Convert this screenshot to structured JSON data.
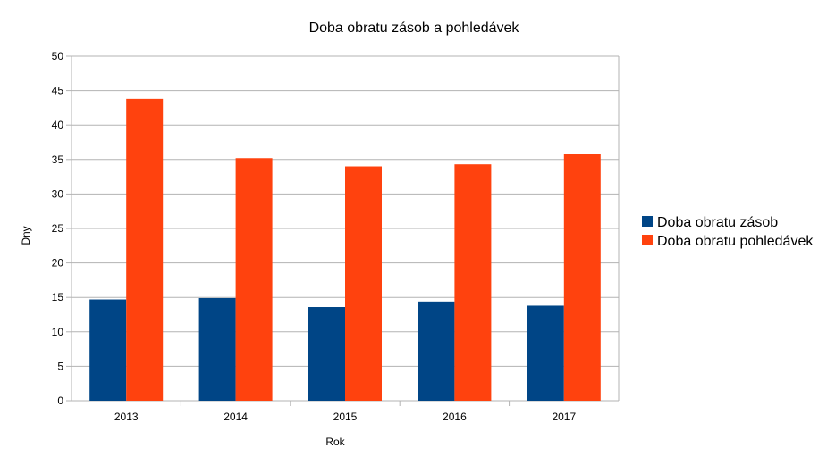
{
  "chart_data": {
    "type": "bar",
    "title": "Doba obratu zásob a pohledávek",
    "xlabel": "Rok",
    "ylabel": "Dny",
    "categories": [
      "2013",
      "2014",
      "2015",
      "2016",
      "2017"
    ],
    "series": [
      {
        "name": "Doba obratu zásob",
        "color": "#004586",
        "values": [
          14.7,
          14.9,
          13.6,
          14.4,
          13.8
        ]
      },
      {
        "name": "Doba obratu pohledávek",
        "color": "#ff420e",
        "values": [
          43.8,
          35.2,
          34.0,
          34.3,
          35.8
        ]
      }
    ],
    "ylim": [
      0,
      50
    ],
    "yticks": [
      "0",
      "5",
      "10",
      "15",
      "20",
      "25",
      "30",
      "35",
      "40",
      "45",
      "50"
    ],
    "grid": true,
    "legend_position": "right"
  }
}
